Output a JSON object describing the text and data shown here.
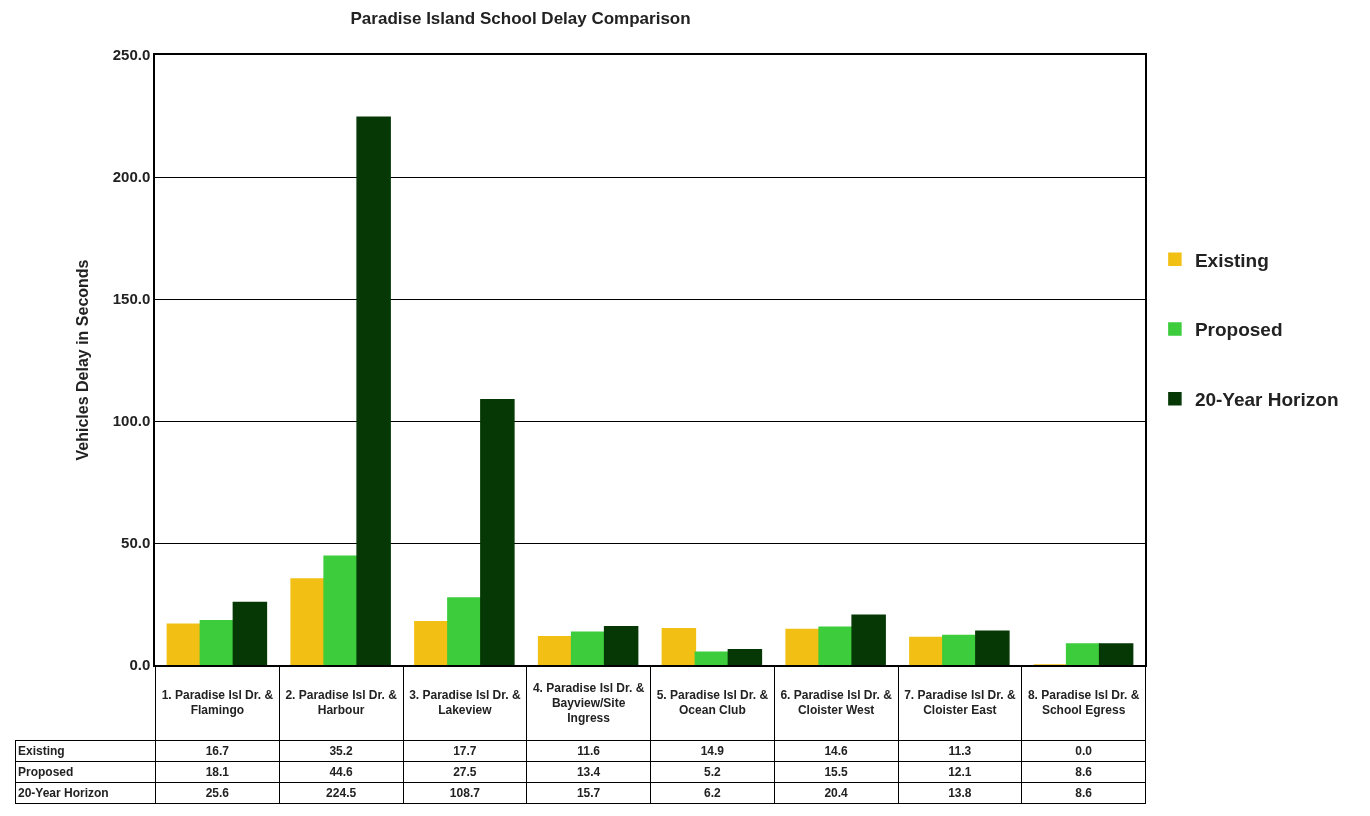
{
  "chart_data": {
    "type": "bar",
    "title": "Paradise Island School Delay Comparison",
    "ylabel": "Vehicles Delay in Seconds",
    "categories": [
      "1. Paradise Isl Dr. & Flamingo",
      "2. Paradise Isl Dr. & Harbour",
      "3. Paradise Isl Dr. & Lakeview",
      "4. Paradise Isl Dr. & Bayview/Site Ingress",
      "5. Paradise Isl Dr. & Ocean Club",
      "6. Paradise Isl Dr. & Cloister West",
      "7. Paradise Isl Dr. & Cloister East",
      "8. Paradise Isl Dr. & School Egress"
    ],
    "series": [
      {
        "name": "Existing",
        "color": "#f2c014",
        "values": [
          16.7,
          35.2,
          17.7,
          11.6,
          14.9,
          14.6,
          11.3,
          0.0
        ],
        "value_labels": [
          "16.7",
          "35.2",
          "17.7",
          "11.6",
          "14.9",
          "14.6",
          "11.3",
          "0.0"
        ]
      },
      {
        "name": "Proposed",
        "color": "#3ccc3c",
        "values": [
          18.1,
          44.6,
          27.5,
          13.4,
          5.2,
          15.5,
          12.1,
          8.6
        ],
        "value_labels": [
          "18.1",
          "44.6",
          "27.5",
          "13.4",
          "5.2",
          "15.5",
          "12.1",
          "8.6"
        ]
      },
      {
        "name": "20-Year Horizon",
        "color": "#063806",
        "values": [
          25.6,
          224.5,
          108.7,
          15.7,
          6.2,
          20.4,
          13.8,
          8.6
        ],
        "value_labels": [
          "25.6",
          "224.5",
          "108.7",
          "15.7",
          "6.2",
          "20.4",
          "13.8",
          "8.6"
        ]
      }
    ],
    "ylim": [
      0,
      250
    ],
    "yticks": [
      {
        "value": 0,
        "label": "0.0"
      },
      {
        "value": 50,
        "label": "50.0"
      },
      {
        "value": 100,
        "label": "100.0"
      },
      {
        "value": 150,
        "label": "150.0"
      },
      {
        "value": 200,
        "label": "200.0"
      },
      {
        "value": 250,
        "label": "250.0"
      }
    ],
    "grid": "y",
    "legend": "right"
  }
}
